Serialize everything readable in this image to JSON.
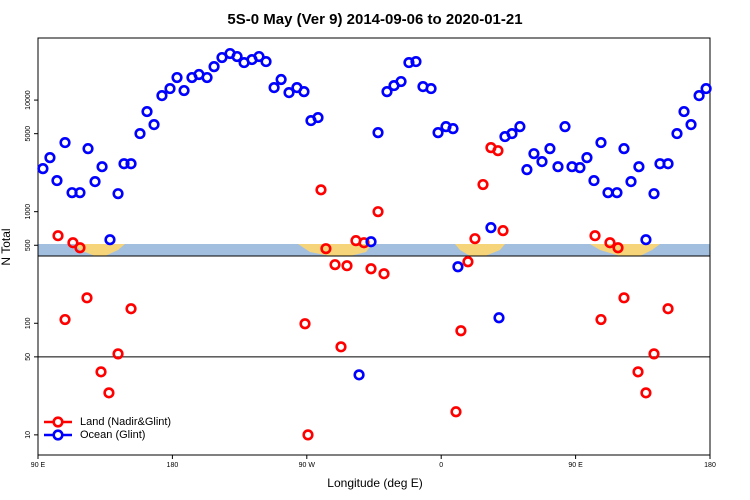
{
  "chart_data": {
    "type": "scatter",
    "title": "5S-0 May (Ver 9)   2014-09-06 to 2020-01-21",
    "xlabel": "Longitude (deg E)",
    "ylabel": "N Total",
    "xlim": [
      90,
      540
    ],
    "xticks": [
      {
        "value": 90,
        "label": "90 E"
      },
      180,
      {
        "value": 270,
        "label": "90 W"
      },
      {
        "value": 360,
        "label": "0"
      },
      {
        "value": 450,
        "label": "90 E"
      },
      {
        "value": 540,
        "label": "180"
      }
    ],
    "ylim": [
      6.6,
      36000
    ],
    "ylog": true,
    "yticks": [
      10,
      50,
      100,
      500,
      1000,
      5000,
      10000
    ],
    "reference_line": 50,
    "legend": "lower left",
    "series": [
      {
        "name": "Land (Nadir&Glint)",
        "color": "#ff0000",
        "x": [
          103.4,
          108.1,
          113.4,
          118.1,
          122.8,
          132.2,
          137.5,
          143.6,
          152.3,
          268.8,
          270.8,
          279.5,
          282.8,
          288.9,
          292.9,
          296.9,
          302.9,
          308.3,
          313.0,
          317.7,
          321.7,
          369.9,
          373.2,
          377.9,
          382.6,
          388.0,
          393.3,
          398.0,
          401.4,
          463.0,
          467.0,
          473.0,
          478.4,
          482.4,
          491.8,
          497.1,
          502.5,
          511.9
        ],
        "values": [
          609,
          108,
          527,
          475,
          169,
          36.7,
          23.8,
          53.2,
          135,
          99,
          10,
          1570,
          466,
          335,
          61.5,
          328,
          550,
          527,
          308,
          1000,
          278,
          16.1,
          85.7,
          356,
          573,
          1750,
          3750,
          3520,
          676,
          609,
          108,
          527,
          475,
          169,
          36.7,
          23.8,
          53.2,
          135
        ]
      },
      {
        "name": "Ocean (Glint)",
        "color": "#0000ff",
        "x": [
          93.3,
          98.0,
          102.7,
          108.1,
          112.8,
          118.1,
          123.5,
          128.2,
          132.9,
          138.2,
          143.6,
          147.6,
          152.3,
          158.3,
          163.0,
          167.7,
          173.0,
          178.4,
          183.1,
          187.8,
          193.1,
          197.8,
          203.2,
          207.9,
          213.2,
          218.6,
          223.3,
          228.0,
          233.3,
          238.0,
          242.7,
          248.1,
          252.8,
          258.1,
          263.4,
          268.1,
          272.8,
          277.5,
          305.0,
          313.0,
          317.7,
          323.7,
          328.4,
          333.1,
          338.4,
          343.1,
          347.8,
          353.2,
          357.9,
          363.2,
          367.9,
          371.2,
          393.3,
          398.7,
          402.7,
          407.4,
          412.7,
          417.4,
          422.1,
          427.5,
          432.8,
          438.2,
          442.9,
          447.6,
          452.9,
          457.6,
          462.3,
          467.0,
          471.7,
          477.7,
          482.4,
          487.1,
          492.4,
          497.1,
          502.5,
          506.5,
          511.9,
          517.9,
          522.6,
          527.3,
          532.7,
          537.4
        ],
        "values": [
          2430,
          3050,
          1900,
          4160,
          1480,
          1480,
          3670,
          1860,
          2530,
          561,
          1450,
          2690,
          2690,
          5010,
          7890,
          6030,
          10970,
          12680,
          15920,
          12170,
          15920,
          16940,
          15920,
          19950,
          24050,
          26120,
          24550,
          21680,
          23070,
          24550,
          22130,
          12940,
          15280,
          11670,
          12940,
          11910,
          6550,
          6970,
          34.5,
          538,
          5110,
          11910,
          13490,
          14660,
          21680,
          22130,
          13210,
          12680,
          5110,
          5780,
          5550,
          321,
          719,
          112,
          4710,
          5010,
          5780,
          2380,
          3310,
          2810,
          3670,
          2530,
          5780,
          2530,
          2480,
          3050,
          1900,
          4160,
          1480,
          1480,
          3670,
          1860,
          2530,
          561,
          1450,
          2690,
          2690,
          5010,
          7890,
          6030,
          10970,
          12680
        ]
      }
    ]
  }
}
